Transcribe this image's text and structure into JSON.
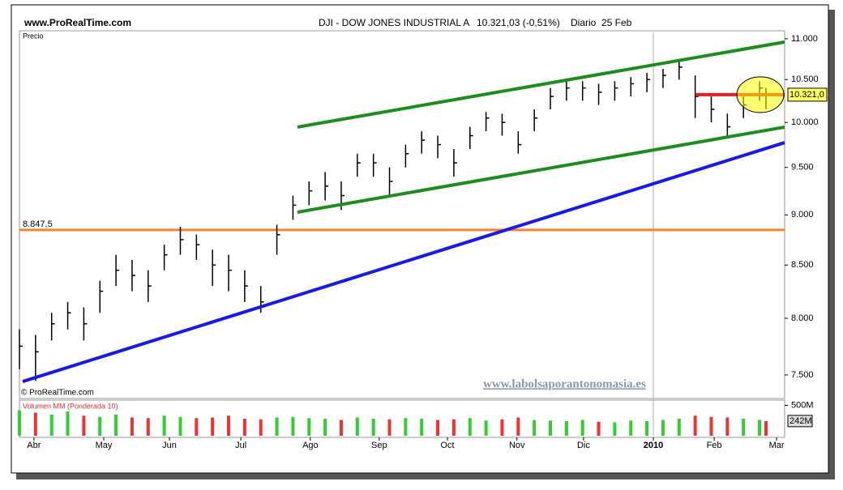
{
  "chart_data": {
    "type": "ohlc",
    "site": "www.ProRealTime.com",
    "title": "DJI - DOW JONES INDUSTRIAL A",
    "last": "10.321,03 (-0,51%)",
    "period": "Diario",
    "date": "25 Feb",
    "price_label": "Precio",
    "copyright": "© ProRealTime.com",
    "watermark": "www.labolsaporantonomasia.es",
    "log_scale": true,
    "x": [
      0,
      5,
      10,
      15,
      20,
      25,
      30,
      35,
      40,
      45,
      50,
      55,
      60,
      65,
      70,
      75,
      80,
      85,
      90,
      95,
      100,
      105,
      110,
      115,
      120,
      125,
      130,
      135,
      140,
      145,
      150,
      155,
      160,
      165,
      170,
      175,
      180,
      185,
      190,
      195,
      200,
      205,
      210,
      215,
      220,
      225,
      230,
      232
    ],
    "close": [
      7750,
      7700,
      7950,
      8050,
      7950,
      8250,
      8450,
      8400,
      8300,
      8600,
      8750,
      8700,
      8500,
      8450,
      8300,
      8150,
      8800,
      9100,
      9250,
      9300,
      9200,
      9550,
      9550,
      9350,
      9650,
      9800,
      9750,
      9550,
      9850,
      10050,
      10000,
      9750,
      10050,
      10300,
      10400,
      10400,
      10350,
      10400,
      10450,
      10500,
      10550,
      10650,
      10300,
      10150,
      9950,
      10200,
      10400,
      10321
    ],
    "high": [
      7900,
      7850,
      8050,
      8150,
      8100,
      8350,
      8600,
      8550,
      8450,
      8700,
      8880,
      8800,
      8650,
      8600,
      8450,
      8300,
      8900,
      9200,
      9350,
      9450,
      9350,
      9650,
      9650,
      9500,
      9750,
      9900,
      9850,
      9700,
      9950,
      10120,
      10100,
      9900,
      10150,
      10400,
      10500,
      10480,
      10450,
      10480,
      10530,
      10580,
      10630,
      10730,
      10550,
      10300,
      10100,
      10300,
      10480,
      10400
    ],
    "low": [
      7550,
      7450,
      7800,
      7900,
      7800,
      8050,
      8300,
      8250,
      8150,
      8450,
      8600,
      8550,
      8300,
      8250,
      8150,
      8050,
      8600,
      8950,
      9100,
      9150,
      9050,
      9400,
      9400,
      9200,
      9500,
      9650,
      9600,
      9400,
      9700,
      9900,
      9850,
      9650,
      9900,
      10150,
      10250,
      10250,
      10200,
      10250,
      10300,
      10350,
      10400,
      10500,
      10050,
      10000,
      9850,
      10050,
      10250,
      10150
    ],
    "xlim": [
      0,
      237.8
    ],
    "xticks": [
      {
        "value": 4.5,
        "label": "Abr"
      },
      {
        "value": 26.2,
        "label": "May"
      },
      {
        "value": 46.6,
        "label": "Jun"
      },
      {
        "value": 68.8,
        "label": "Jul"
      },
      {
        "value": 90.4,
        "label": "Ago"
      },
      {
        "value": 111.8,
        "label": "Sep"
      },
      {
        "value": 133,
        "label": "Oct"
      },
      {
        "value": 154.6,
        "label": "Nov"
      },
      {
        "value": 175.3,
        "label": "Dic"
      },
      {
        "value": 197,
        "label": "2010"
      },
      {
        "value": 215.9,
        "label": "Feb"
      },
      {
        "value": 235.3,
        "label": "Mar"
      }
    ],
    "ylim": [
      7315,
      11080
    ],
    "yticks": [
      {
        "value": 7500,
        "label": "7.500"
      },
      {
        "value": 8000,
        "label": "8.000"
      },
      {
        "value": 8500,
        "label": "8.500"
      },
      {
        "value": 9000,
        "label": "9.000"
      },
      {
        "value": 9500,
        "label": "9.500"
      },
      {
        "value": 10000,
        "label": "10.000"
      },
      {
        "value": 10500,
        "label": "10.500"
      },
      {
        "value": 11000,
        "label": "11.000"
      }
    ],
    "trend_lines": [
      {
        "x": [
          86.4,
          237.8
        ],
        "y": [
          9947,
          10959
        ],
        "color": "#1e8c1e"
      },
      {
        "x": [
          86.4,
          237.8
        ],
        "y": [
          9028,
          9947
        ],
        "color": "#1e8c1e"
      },
      {
        "x": [
          1,
          237.8
        ],
        "y": [
          7444,
          9773
        ],
        "color": "#1a1ae6"
      },
      {
        "x": [
          210,
          237.8
        ],
        "y": [
          10321,
          10321
        ],
        "color": "#e61e1e"
      }
    ],
    "support": {
      "value": 8847.5,
      "label": "8.847,5",
      "color": "#ff7f2a"
    },
    "last_value": {
      "value": 10321,
      "label": "10.321,0"
    },
    "volume": {
      "label": "Volumen MM (Ponderada 10)",
      "values": [
        420,
        380,
        350,
        400,
        330,
        310,
        350,
        300,
        290,
        330,
        310,
        290,
        300,
        330,
        280,
        270,
        300,
        310,
        290,
        280,
        260,
        300,
        280,
        270,
        290,
        280,
        260,
        270,
        290,
        250,
        270,
        300,
        260,
        250,
        240,
        260,
        230,
        220,
        250,
        240,
        260,
        280,
        330,
        310,
        300,
        280,
        260,
        242
      ],
      "ylim": [
        0,
        560
      ],
      "yticks": [
        {
          "value": 500,
          "label": "500M"
        }
      ],
      "last": {
        "value": 242,
        "label": "242M"
      }
    }
  }
}
